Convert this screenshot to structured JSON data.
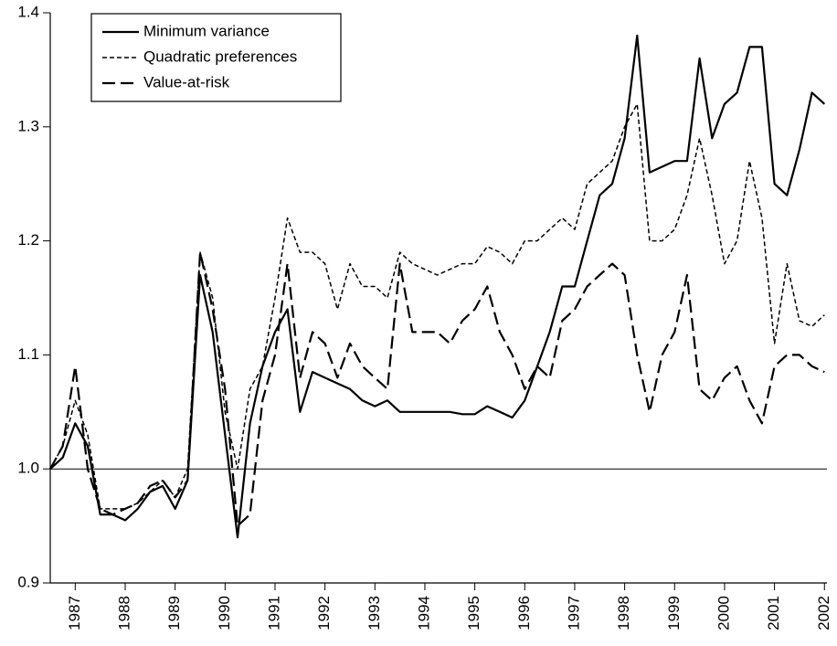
{
  "chart_data": {
    "type": "line",
    "x": [
      1987,
      1987.25,
      1987.5,
      1987.75,
      1988,
      1988.25,
      1988.5,
      1988.75,
      1989,
      1989.25,
      1989.5,
      1989.75,
      1990,
      1990.25,
      1990.5,
      1990.75,
      1991,
      1991.25,
      1991.5,
      1991.75,
      1992,
      1992.25,
      1992.5,
      1992.75,
      1993,
      1993.25,
      1993.5,
      1993.75,
      1994,
      1994.25,
      1994.5,
      1994.75,
      1995,
      1995.25,
      1995.5,
      1995.75,
      1996,
      1996.25,
      1996.5,
      1996.75,
      1997,
      1997.25,
      1997.5,
      1997.75,
      1998,
      1998.25,
      1998.5,
      1998.75,
      1999,
      1999.25,
      1999.5,
      1999.75,
      2000,
      2000.25,
      2000.5,
      2000.75,
      2001,
      2001.25,
      2001.5,
      2001.75,
      2002,
      2002.25,
      2002.5
    ],
    "series": [
      {
        "name": "Minimum variance",
        "color": "#000000",
        "dash": "solid",
        "values": [
          1.0,
          1.01,
          1.04,
          1.02,
          0.96,
          0.96,
          0.955,
          0.965,
          0.98,
          0.985,
          0.965,
          0.99,
          1.17,
          1.12,
          1.03,
          0.94,
          1.04,
          1.09,
          1.12,
          1.14,
          1.05,
          1.085,
          1.08,
          1.075,
          1.07,
          1.06,
          1.055,
          1.06,
          1.05,
          1.05,
          1.05,
          1.05,
          1.05,
          1.048,
          1.048,
          1.055,
          1.05,
          1.045,
          1.06,
          1.09,
          1.12,
          1.16,
          1.16,
          1.2,
          1.24,
          1.25,
          1.29,
          1.38,
          1.26,
          1.265,
          1.27,
          1.27,
          1.36,
          1.29,
          1.32,
          1.33,
          1.37,
          1.37,
          1.25,
          1.24,
          1.28,
          1.33,
          1.32
        ]
      },
      {
        "name": "Quadratic preferences",
        "color": "#000000",
        "dash": "short",
        "values": [
          1.0,
          1.02,
          1.06,
          1.03,
          0.965,
          0.965,
          0.965,
          0.97,
          0.98,
          0.99,
          0.975,
          1.0,
          1.19,
          1.15,
          1.05,
          1.0,
          1.07,
          1.09,
          1.15,
          1.22,
          1.19,
          1.19,
          1.18,
          1.14,
          1.18,
          1.16,
          1.16,
          1.15,
          1.19,
          1.18,
          1.175,
          1.17,
          1.175,
          1.18,
          1.18,
          1.195,
          1.19,
          1.18,
          1.2,
          1.2,
          1.21,
          1.22,
          1.21,
          1.25,
          1.26,
          1.27,
          1.3,
          1.32,
          1.2,
          1.2,
          1.21,
          1.24,
          1.29,
          1.24,
          1.18,
          1.2,
          1.27,
          1.22,
          1.11,
          1.18,
          1.13,
          1.125,
          1.135
        ]
      },
      {
        "name": "Value-at-risk",
        "color": "#000000",
        "dash": "long",
        "values": [
          1.0,
          1.02,
          1.09,
          1.0,
          0.965,
          0.96,
          0.965,
          0.97,
          0.985,
          0.99,
          0.975,
          0.99,
          1.19,
          1.14,
          1.07,
          0.95,
          0.96,
          1.06,
          1.1,
          1.18,
          1.08,
          1.12,
          1.11,
          1.08,
          1.11,
          1.09,
          1.08,
          1.07,
          1.18,
          1.12,
          1.12,
          1.12,
          1.11,
          1.13,
          1.14,
          1.16,
          1.12,
          1.1,
          1.07,
          1.09,
          1.08,
          1.13,
          1.14,
          1.16,
          1.17,
          1.18,
          1.17,
          1.1,
          1.05,
          1.1,
          1.12,
          1.17,
          1.07,
          1.06,
          1.08,
          1.09,
          1.06,
          1.04,
          1.09,
          1.1,
          1.1,
          1.09,
          1.085
        ]
      }
    ],
    "xlim": [
      1987,
      2002.55
    ],
    "xticks": [
      {
        "value": 1987.5,
        "label": "1987"
      },
      {
        "value": 1988.5,
        "label": "1988"
      },
      {
        "value": 1989.5,
        "label": "1989"
      },
      {
        "value": 1990.5,
        "label": "1990"
      },
      {
        "value": 1991.5,
        "label": "1991"
      },
      {
        "value": 1992.5,
        "label": "1992"
      },
      {
        "value": 1993.5,
        "label": "1993"
      },
      {
        "value": 1994.5,
        "label": "1994"
      },
      {
        "value": 1995.5,
        "label": "1995"
      },
      {
        "value": 1996.5,
        "label": "1996"
      },
      {
        "value": 1997.5,
        "label": "1997"
      },
      {
        "value": 1998.5,
        "label": "1998"
      },
      {
        "value": 1999.5,
        "label": "1999"
      },
      {
        "value": 2000.5,
        "label": "2000"
      },
      {
        "value": 2001.5,
        "label": "2001"
      },
      {
        "value": 2002.5,
        "label": "2002"
      }
    ],
    "ylim": [
      0.9,
      1.4
    ],
    "yticks": [
      0.9,
      {
        "value": 1,
        "label": "1.0"
      },
      1.1,
      1.2,
      1.3,
      1.4
    ],
    "reference_line": 1,
    "legend": "upper left"
  }
}
